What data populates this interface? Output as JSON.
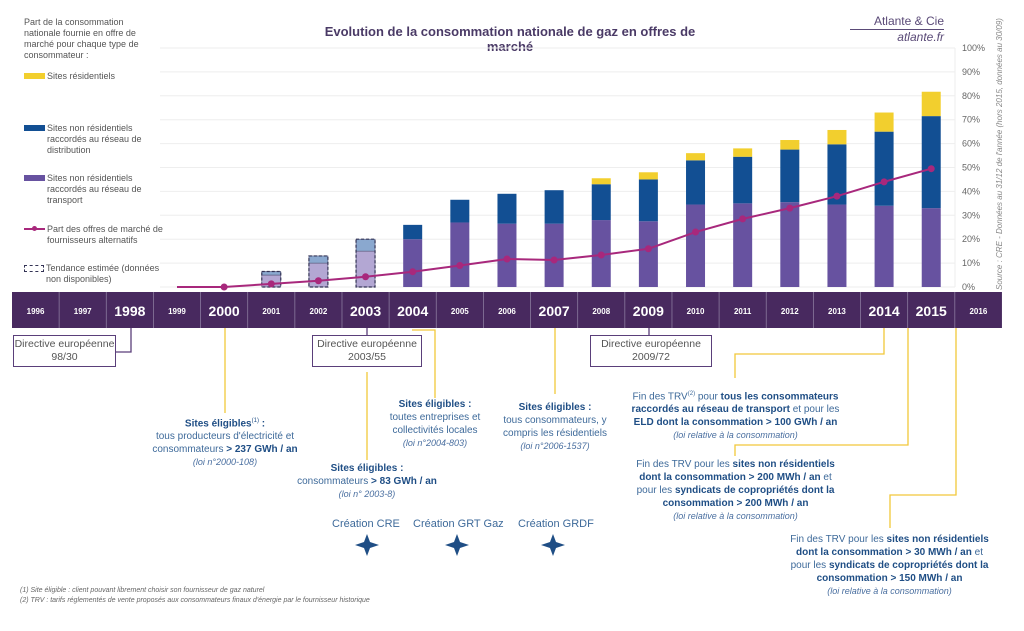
{
  "header": {
    "title": "Evolution de la consommation nationale de gaz en offres de marché",
    "brand": "Atlante & Cie",
    "brand_url": "atlante.fr"
  },
  "legend": {
    "heading": "Part de la consommation nationale fournie en offre de marché pour chaque type de consommateur :",
    "items": [
      {
        "label": "Sites résidentiels",
        "color": "#f2cf2e"
      },
      {
        "label": "Sites non résidentiels raccordés au réseau de distribution",
        "color": "#124f93"
      },
      {
        "label": "Sites non résidentiels raccordés au réseau de transport",
        "color": "#6752a0"
      },
      {
        "label": "Part des offres de marché de fournisseurs alternatifs",
        "color": "#a8287c"
      },
      {
        "label": "Tendance estimée (données non disponibles)",
        "color": "#333355"
      }
    ]
  },
  "source": "Source : CRE - Données au 31/12 de l'année (hors 2015, données au 30/09)",
  "chart_data": {
    "type": "bar",
    "stacked": true,
    "title": "Evolution de la consommation nationale de gaz en offres de marché",
    "categories": [
      "1996",
      "1997",
      "1998",
      "1999",
      "2000",
      "2001",
      "2002",
      "2003",
      "2004",
      "2005",
      "2006",
      "2007",
      "2008",
      "2009",
      "2010",
      "2011",
      "2012",
      "2013",
      "2014",
      "2015",
      "2016"
    ],
    "highlighted_years": [
      "1998",
      "2000",
      "2003",
      "2004",
      "2007",
      "2009",
      "2014",
      "2015"
    ],
    "yaxis": {
      "position": "right",
      "ticks": [
        "0%",
        "10%",
        "20%",
        "30%",
        "40%",
        "50%",
        "60%",
        "70%",
        "80%",
        "90%",
        "100%"
      ],
      "ylim": [
        0,
        100
      ],
      "grid": true
    },
    "estimated_years": [
      "2001",
      "2002",
      "2003"
    ],
    "series": [
      {
        "name": "Sites non résidentiels raccordés au réseau de transport",
        "type": "bar",
        "values": [
          null,
          null,
          null,
          null,
          null,
          5,
          10,
          15,
          20,
          27,
          26.5,
          26.5,
          28,
          27.5,
          34.5,
          35,
          35.5,
          34.5,
          34,
          33,
          null
        ]
      },
      {
        "name": "Sites non résidentiels raccordés au réseau de distribution",
        "type": "bar",
        "values": [
          null,
          null,
          null,
          null,
          null,
          1.5,
          3,
          5,
          6,
          9.5,
          12.5,
          14,
          15,
          17.5,
          18.5,
          19.5,
          22,
          25.2,
          31,
          38.5,
          null
        ]
      },
      {
        "name": "Sites résidentiels",
        "type": "bar",
        "values": [
          null,
          null,
          null,
          null,
          null,
          0,
          0,
          0,
          0,
          0,
          0,
          0,
          2.5,
          3,
          3,
          3.5,
          4,
          6,
          8,
          10.2,
          null
        ]
      },
      {
        "name": "Part des offres de marché de fournisseurs alternatifs",
        "type": "line",
        "values": [
          null,
          null,
          null,
          0,
          0,
          1.3,
          2.6,
          4.3,
          6.4,
          9,
          11.7,
          11.3,
          13.4,
          16,
          23,
          28.5,
          33,
          38,
          44,
          49.5,
          null
        ]
      }
    ]
  },
  "timeline": {
    "directives": [
      {
        "label": "Directive européenne 98/30",
        "year": "1998"
      },
      {
        "label": "Directive européenne 2003/55",
        "year": "2003"
      },
      {
        "label": "Directive européenne 2009/72",
        "year": "2009"
      }
    ],
    "events": {
      "e2000": {
        "title": "Sites éligibles",
        "sup": "(1)",
        "line1": "tous producteurs d'électricité et",
        "line2a": "consommateurs",
        "line2b": "> 237 GWh / an",
        "law": "(loi n°2000-108)"
      },
      "e2003": {
        "title": "Sites éligibles :",
        "line1a": "consommateurs",
        "line1b": "> 83 GWh / an",
        "law": "(loi n° 2003-8)"
      },
      "e2004": {
        "title": "Sites éligibles :",
        "line1": "toutes entreprises et",
        "line2": "collectivités locales",
        "law": "(loi n°2004-803)"
      },
      "e2007": {
        "title": "Sites éligibles :",
        "line1": "tous consommateurs, y",
        "line2": "compris les résidentiels",
        "law": "(loi n°2006-1537)"
      },
      "e2014": {
        "t1": "Fin des TRV",
        "sup": "(2)",
        "t2": " pour ",
        "b1": "tous les consommateurs raccordés au réseau de transport",
        "t3": " et pour les ",
        "b2": "ELD dont la consommation > 100 GWh / an",
        "law": "(loi relative à la consommation)"
      },
      "e2015": {
        "t1": "Fin des TRV pour les ",
        "b1": "sites non résidentiels dont la consommation > 200 MWh / an",
        "t2": " et pour les ",
        "b2": "syndicats de copropriétés dont la consommation > 200 MWh / an",
        "law": "(loi relative à la consommation)"
      },
      "e2016": {
        "t1": "Fin des TRV pour les ",
        "b1": "sites non résidentiels dont la consommation > 30 MWh / an",
        "t2": " et pour les ",
        "b2": "syndicats de copropriétés dont la consommation > 150 MWh / an",
        "law": "(loi relative à la consommation)"
      }
    },
    "creations": [
      "Création CRE",
      "Création GRT Gaz",
      "Création GRDF"
    ]
  },
  "footnotes": [
    "(1) Site éligible : client pouvant librement choisir son fournisseur de gaz naturel",
    "(2) TRV : tarifs réglementés de vente proposés aux consommateurs finaux d'énergie par le fournisseur historique"
  ]
}
